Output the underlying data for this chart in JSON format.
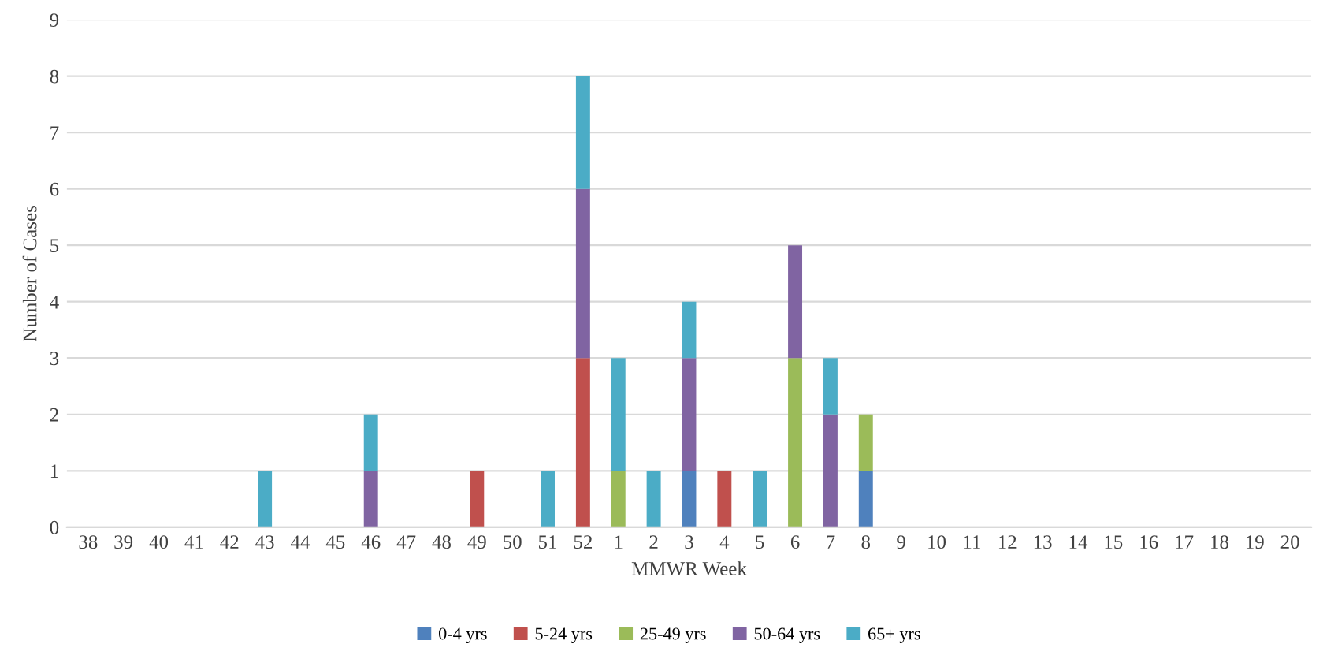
{
  "chart_data": {
    "type": "bar",
    "stacked": true,
    "xlabel": "MMWR Week",
    "ylabel": "Number of Cases",
    "categories": [
      "38",
      "39",
      "40",
      "41",
      "42",
      "43",
      "44",
      "45",
      "46",
      "47",
      "48",
      "49",
      "50",
      "51",
      "52",
      "1",
      "2",
      "3",
      "4",
      "5",
      "6",
      "7",
      "8",
      "9",
      "10",
      "11",
      "12",
      "13",
      "14",
      "15",
      "16",
      "17",
      "18",
      "19",
      "20"
    ],
    "series": [
      {
        "name": "0-4 yrs",
        "color": "#4f81bd",
        "values": [
          0,
          0,
          0,
          0,
          0,
          0,
          0,
          0,
          0,
          0,
          0,
          0,
          0,
          0,
          0,
          0,
          0,
          1,
          0,
          0,
          0,
          0,
          1,
          0,
          0,
          0,
          0,
          0,
          0,
          0,
          0,
          0,
          0,
          0,
          0
        ]
      },
      {
        "name": "5-24 yrs",
        "color": "#c0504d",
        "values": [
          0,
          0,
          0,
          0,
          0,
          0,
          0,
          0,
          0,
          0,
          0,
          1,
          0,
          0,
          3,
          0,
          0,
          0,
          1,
          0,
          0,
          0,
          0,
          0,
          0,
          0,
          0,
          0,
          0,
          0,
          0,
          0,
          0,
          0,
          0
        ]
      },
      {
        "name": "25-49 yrs",
        "color": "#9bbb59",
        "values": [
          0,
          0,
          0,
          0,
          0,
          0,
          0,
          0,
          0,
          0,
          0,
          0,
          0,
          0,
          0,
          1,
          0,
          0,
          0,
          0,
          3,
          0,
          1,
          0,
          0,
          0,
          0,
          0,
          0,
          0,
          0,
          0,
          0,
          0,
          0
        ]
      },
      {
        "name": "50-64 yrs",
        "color": "#8064a2",
        "values": [
          0,
          0,
          0,
          0,
          0,
          0,
          0,
          0,
          1,
          0,
          0,
          0,
          0,
          0,
          3,
          0,
          0,
          2,
          0,
          0,
          2,
          2,
          0,
          0,
          0,
          0,
          0,
          0,
          0,
          0,
          0,
          0,
          0,
          0,
          0
        ]
      },
      {
        "name": "65+ yrs",
        "color": "#4bacc6",
        "values": [
          0,
          0,
          0,
          0,
          0,
          1,
          0,
          0,
          1,
          0,
          0,
          0,
          0,
          1,
          2,
          2,
          1,
          1,
          0,
          1,
          0,
          1,
          0,
          0,
          0,
          0,
          0,
          0,
          0,
          0,
          0,
          0,
          0,
          0,
          0
        ]
      }
    ],
    "ylim": [
      0,
      9
    ],
    "yticks": [
      0,
      1,
      2,
      3,
      4,
      5,
      6,
      7,
      8,
      9
    ],
    "grid": "y",
    "legend": "bottom"
  }
}
